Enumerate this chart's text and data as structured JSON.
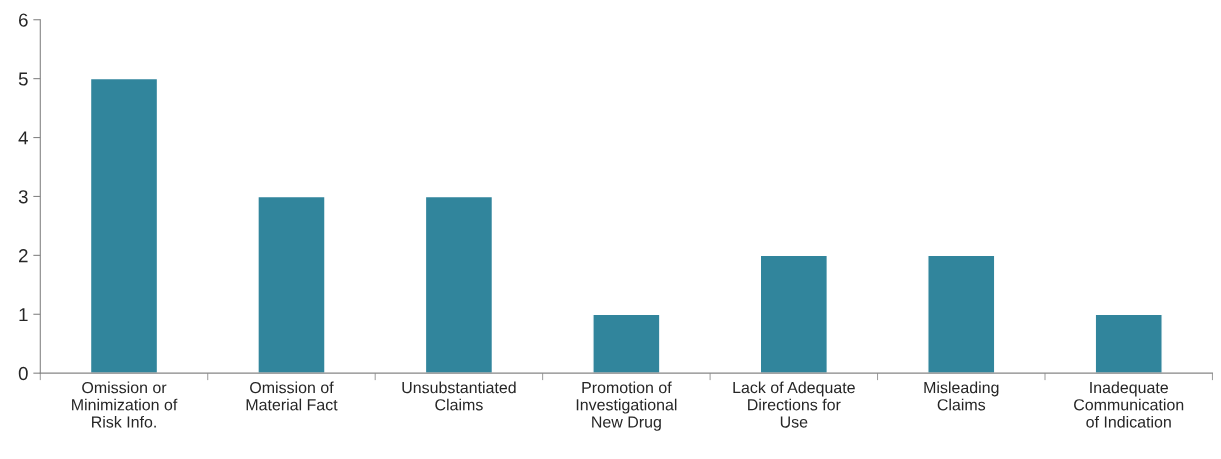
{
  "chart_data": {
    "type": "bar",
    "categories": [
      "Omission or\nMinimization of\nRisk Info.",
      "Omission of\nMaterial Fact",
      "Unsubstantiated\nClaims",
      "Promotion of\nInvestigational\nNew Drug",
      "Lack of Adequate\nDirections for\nUse",
      "Misleading\nClaims",
      "Inadequate\nCommunication\nof Indication"
    ],
    "values": [
      5,
      3,
      3,
      1,
      2,
      2,
      1
    ],
    "color": "#31859c",
    "ylim": [
      0,
      6
    ],
    "yticks": [
      0,
      1,
      2,
      3,
      4,
      5,
      6
    ],
    "grid": false,
    "legend": false
  }
}
